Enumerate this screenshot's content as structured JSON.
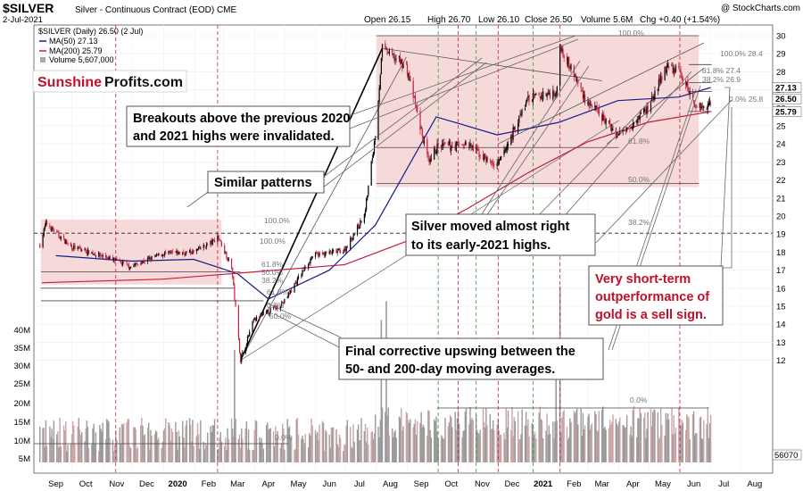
{
  "header": {
    "symbol": "$SILVER",
    "description": "Silver - Continuous Contract (EOD) CME",
    "date": "2-Jul-2021",
    "ohlc_open": "Open 26.15",
    "ohlc_high": "High 26.70",
    "ohlc_low": "Low 26.10",
    "ohlc_close": "Close 26.50",
    "volume": "Volume 5.6M",
    "change": "Chg +0.40 (+1.54%)",
    "watermark": "@ StockCharts.com"
  },
  "legend": {
    "price_label": "$SILVER (Daily) 26.50 (2 Jul)",
    "ma50_label": "MA(50) 27.13",
    "ma200_label": "MA(200) 25.79",
    "volume_label": "Volume 5,607,000"
  },
  "logo": {
    "part1": "Sunshine",
    "part2": "Profits.com"
  },
  "callouts": {
    "breakouts_line1": "Breakouts above the previous 2020",
    "breakouts_line2": "and 2021 highs were invalidated.",
    "similar": "Similar patterns",
    "silver_line1": "Silver moved almost right",
    "silver_line2": "to its early-2021 highs.",
    "short_line1": "Very short-term",
    "short_line2": "outperformance of",
    "short_line3": "gold is a sell sign.",
    "final_line1": "Final corrective upswing between the",
    "final_line2": "50- and 200-day moving averages."
  },
  "price_axis_labels": [
    "30",
    "29",
    "28",
    "27",
    "26",
    "25",
    "24",
    "23",
    "22",
    "21",
    "20",
    "19",
    "18",
    "17",
    "16",
    "15",
    "14",
    "13",
    "12"
  ],
  "price_tags": {
    "ma50": "27.13",
    "close": "26.50",
    "ma200": "25.79"
  },
  "volume_axis_labels": [
    "40M",
    "35M",
    "30M",
    "25M",
    "20M",
    "15M",
    "10M",
    "5M"
  ],
  "volume_tag": "56070",
  "month_labels": [
    "Sep",
    "Oct",
    "Nov",
    "Dec",
    "2020",
    "Feb",
    "Mar",
    "Apr",
    "May",
    "Jun",
    "Jul",
    "Aug",
    "Sep",
    "Oct",
    "Nov",
    "Dec",
    "2021",
    "Feb",
    "Mar",
    "Apr",
    "May",
    "Jun",
    "Jul",
    "Aug"
  ],
  "fib_labels": {
    "a_100": "100.0%",
    "a_100b": "100.0%",
    "a_618": "61.8%",
    "a_500": "50.0%",
    "a_382": "38.2%",
    "b_618": "61.8%",
    "b_500": "50.0%",
    "b_0": "0.0%",
    "c_100": "100.0%",
    "c_618": "61.8%",
    "c_500": "50.0%",
    "c_382": "38.2%",
    "c_0": "0.0%",
    "d_100": "100.0% 28.4",
    "d_618": "61.8% 27.4",
    "d_382": "38.2% 26.9",
    "d_0": "0.0% 25.8",
    "v_0": "0.0%",
    "v_0b": "0.0%"
  },
  "colors": {
    "ma50": "#1a1a8c",
    "ma200": "#c41e3a",
    "up_candle": "#000000",
    "down_candle": "#c41e3a",
    "zone_fill": "#f4d2d2",
    "volume": "#aaaaaa",
    "logo_red": "#c0102a",
    "dashed_red": "#c41e3a",
    "dashed_green": "#2e9e2e"
  },
  "chart_data": {
    "type": "line",
    "title": "$SILVER Silver - Continuous Contract (EOD) CME",
    "ylim": [
      12,
      30.5
    ],
    "series": [
      {
        "name": "$SILVER (Daily)",
        "x": [
          "2019-08-30",
          "2019-09-05",
          "2019-09-30",
          "2019-10-31",
          "2019-11-29",
          "2019-12-31",
          "2020-01-31",
          "2020-02-20",
          "2020-02-24",
          "2020-03-09",
          "2020-03-18",
          "2020-03-31",
          "2020-04-30",
          "2020-05-29",
          "2020-06-30",
          "2020-07-20",
          "2020-07-31",
          "2020-08-07",
          "2020-08-31",
          "2020-09-23",
          "2020-09-30",
          "2020-10-30",
          "2020-11-30",
          "2020-12-31",
          "2021-01-29",
          "2021-02-01",
          "2021-02-26",
          "2021-03-31",
          "2021-04-30",
          "2021-05-18",
          "2021-05-31",
          "2021-06-17",
          "2021-06-30",
          "2021-07-02"
        ],
        "values": [
          18.4,
          19.6,
          18.3,
          17.8,
          17.2,
          17.9,
          18.0,
          18.6,
          18.9,
          17.2,
          12.0,
          14.2,
          15.2,
          17.8,
          18.1,
          20.0,
          24.5,
          29.3,
          28.3,
          22.8,
          23.8,
          24.0,
          22.7,
          26.5,
          26.9,
          29.5,
          26.5,
          24.5,
          26.0,
          28.2,
          28.1,
          26.1,
          26.1,
          26.5
        ]
      },
      {
        "name": "MA(50)",
        "x": [
          "2019-09-15",
          "2019-11-30",
          "2020-01-31",
          "2020-03-15",
          "2020-04-15",
          "2020-06-15",
          "2020-07-31",
          "2020-09-30",
          "2020-11-30",
          "2021-01-31",
          "2021-03-31",
          "2021-05-31",
          "2021-07-02"
        ],
        "values": [
          17.8,
          17.5,
          17.6,
          16.8,
          15.4,
          17.0,
          19.5,
          25.5,
          24.5,
          25.2,
          26.4,
          26.6,
          27.13
        ]
      },
      {
        "name": "MA(200)",
        "x": [
          "2019-09-01",
          "2019-12-31",
          "2020-03-31",
          "2020-06-30",
          "2020-08-31",
          "2020-10-31",
          "2020-12-31",
          "2021-02-28",
          "2021-04-30",
          "2021-07-02"
        ],
        "values": [
          16.3,
          16.5,
          16.9,
          17.3,
          18.6,
          20.4,
          22.4,
          24.1,
          25.2,
          25.79
        ]
      }
    ],
    "volume_axis": [
      "40M",
      "35M",
      "30M",
      "25M",
      "20M",
      "15M",
      "10M",
      "5M"
    ],
    "grid": true
  }
}
